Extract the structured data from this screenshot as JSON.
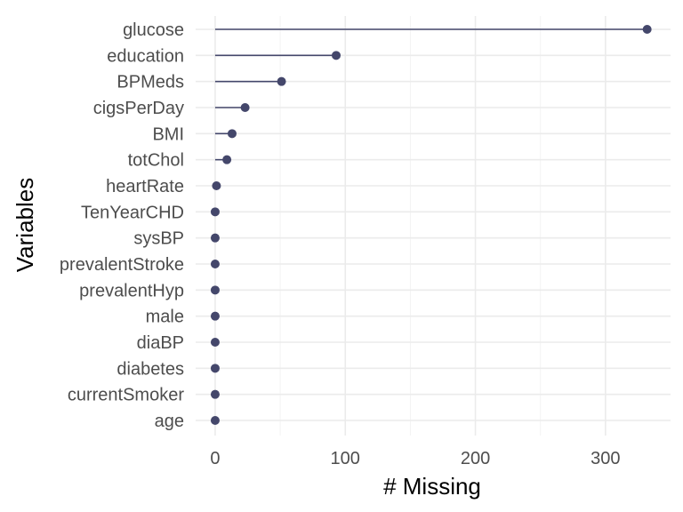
{
  "chart_data": {
    "type": "lollipop",
    "orientation": "horizontal",
    "xlabel": "# Missing",
    "ylabel": "Variables",
    "xlim": [
      -15,
      350
    ],
    "x_ticks": [
      0,
      100,
      200,
      300
    ],
    "x_minor_ticks": [
      50,
      150,
      250
    ],
    "grid": true,
    "legend": "none",
    "colors": {
      "marker": "#44476b",
      "stem": "#44476b"
    },
    "categories": [
      "glucose",
      "education",
      "BPMeds",
      "cigsPerDay",
      "BMI",
      "totChol",
      "heartRate",
      "TenYearCHD",
      "sysBP",
      "prevalentStroke",
      "prevalentHyp",
      "male",
      "diaBP",
      "diabetes",
      "currentSmoker",
      "age"
    ],
    "values": [
      332,
      93,
      51,
      23,
      13,
      9,
      1,
      0,
      0,
      0,
      0,
      0,
      0,
      0,
      0,
      0
    ]
  }
}
